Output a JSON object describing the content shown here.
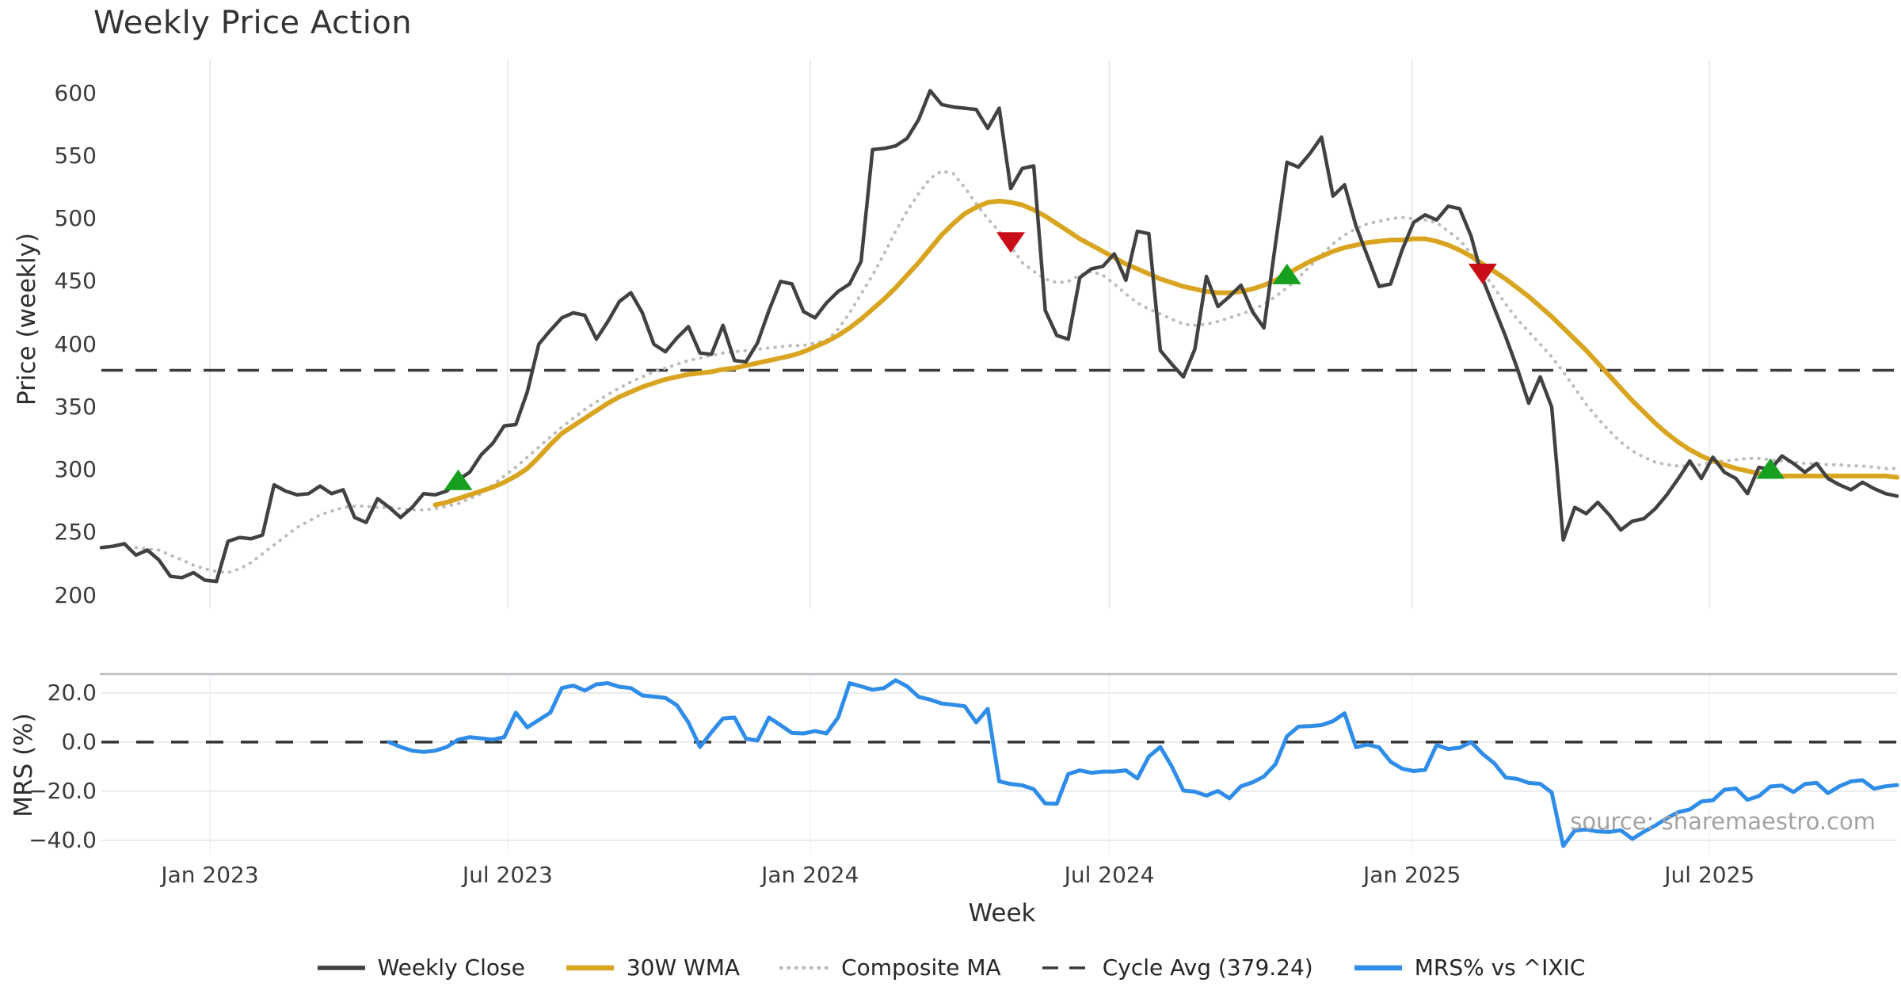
{
  "title": "Weekly Price Action",
  "watermark": "source: sharemaestro.com",
  "legend": [
    {
      "label": "Weekly Close",
      "swatch": "solid",
      "color": "#414141",
      "width": 5.5
    },
    {
      "label": "30W WMA",
      "swatch": "solid",
      "color": "#D9A521",
      "width": 6.5
    },
    {
      "label": "Composite MA",
      "swatch": "dotted",
      "color": "#B9B9B9",
      "width": 4.5
    },
    {
      "label": "Cycle Avg (379.24)",
      "swatch": "dashed",
      "color": "#3A3A3A",
      "width": 3.5
    },
    {
      "label": "MRS% vs ^IXIC",
      "swatch": "solid",
      "color": "#2F8DE8",
      "width": 6.5
    }
  ],
  "chart_data": {
    "type": "line",
    "title": "Weekly Price Action",
    "xlabel": "Week",
    "start_date": "2022-10-27",
    "step_days": 7,
    "points": 157,
    "x_ticks": [
      {
        "label": "Jan 2023",
        "week": 9.43
      },
      {
        "label": "Jul 2023",
        "week": 35.29
      },
      {
        "label": "Jan 2024",
        "week": 61.57
      },
      {
        "label": "Jul 2024",
        "week": 87.57
      },
      {
        "label": "Jan 2025",
        "week": 113.86
      },
      {
        "label": "Jul 2025",
        "week": 139.71
      }
    ],
    "panels": [
      {
        "id": "price",
        "ylabel": "Price (weekly)",
        "ylim": [
          189.6,
          626.9
        ],
        "grid_vertical": true,
        "yticks": [
          {
            "v": 600,
            "label": "600"
          },
          {
            "v": 550,
            "label": "550"
          },
          {
            "v": 500,
            "label": "500"
          },
          {
            "v": 450,
            "label": "450"
          },
          {
            "v": 400,
            "label": "400"
          },
          {
            "v": 350,
            "label": "350"
          },
          {
            "v": 300,
            "label": "300"
          },
          {
            "v": 250,
            "label": "250"
          },
          {
            "v": 200,
            "label": "200"
          }
        ],
        "hlines": [
          {
            "label": "Cycle Avg (379.24)",
            "value": 379.24,
            "color": "#3C3C3C",
            "dash": "27 16",
            "width": 3.5
          }
        ],
        "series": [
          {
            "name": "Composite MA",
            "color": "#BCBCBC",
            "style": "dotted",
            "width": 4,
            "start_week": 3,
            "values": [
              238,
              237,
              236,
              232,
              228,
              224,
              221,
              219,
              218,
              221,
              226,
              233,
              240,
              247,
              254,
              259,
              264,
              267,
              270,
              271,
              271,
              270,
              270,
              269,
              268,
              268,
              269,
              271,
              273,
              277,
              281,
              288,
              295,
              302,
              310,
              318,
              326,
              334,
              341,
              348,
              354,
              360,
              365,
              370,
              374,
              378,
              381,
              384,
              387,
              389,
              391,
              393,
              394,
              395,
              396,
              397,
              398,
              399,
              399,
              401,
              403,
              412,
              425,
              440,
              455,
              472,
              490,
              506,
              520,
              532,
              538,
              536,
              525,
              512,
              500,
              490,
              478,
              465,
              458,
              452,
              449,
              450,
              455,
              458,
              455,
              448,
              440,
              433,
              428,
              424,
              420,
              416,
              415,
              416,
              418,
              421,
              424,
              427,
              432,
              438,
              445,
              453,
              462,
              471,
              480,
              487,
              492,
              496,
              498,
              500,
              501,
              500,
              499,
              497,
              490,
              483,
              472,
              458,
              445,
              432,
              420,
              410,
              400,
              390,
              378,
              365,
              352,
              341,
              331,
              322,
              315,
              310,
              306,
              304,
              303,
              303,
              304,
              306,
              307,
              308,
              309,
              309,
              308,
              307,
              306,
              305,
              305,
              304,
              304,
              303,
              303,
              302,
              301,
              301
            ]
          },
          {
            "name": "30W WMA",
            "color": "#D9A521",
            "style": "solid",
            "width": 6,
            "start_week": 29,
            "values": [
              272,
              274,
              277,
              280,
              283,
              286,
              290,
              295,
              301,
              310,
              320,
              329,
              335,
              341,
              347,
              353,
              358,
              362,
              366,
              369,
              372,
              374,
              376,
              377,
              378,
              380,
              381,
              383,
              385,
              387,
              389,
              391,
              394,
              398,
              402,
              407,
              413,
              420,
              428,
              436,
              445,
              455,
              465,
              476,
              487,
              496,
              504,
              509,
              513,
              514,
              513,
              511,
              507,
              502,
              496,
              490,
              484,
              479,
              474,
              469,
              464,
              460,
              456,
              452,
              449,
              446,
              444,
              442,
              441,
              441,
              442,
              444,
              447,
              451,
              456,
              461,
              466,
              470,
              474,
              477,
              479,
              481,
              482,
              483,
              483,
              484,
              484,
              482,
              479,
              475,
              470,
              464,
              458,
              452,
              445,
              438,
              430,
              422,
              413,
              404,
              395,
              385,
              375,
              365,
              355,
              346,
              337,
              329,
              322,
              316,
              311,
              307,
              304,
              301,
              299,
              297,
              296,
              295,
              295,
              295,
              295,
              295,
              295,
              295,
              295,
              295,
              295,
              294
            ]
          },
          {
            "name": "Weekly Close",
            "color": "#414141",
            "style": "solid",
            "width": 4.5,
            "start_week": 0,
            "values": [
              238,
              239,
              241,
              232,
              236,
              228,
              215,
              214,
              218,
              212,
              211,
              243,
              246,
              245,
              248,
              288,
              283,
              280,
              281,
              287,
              281,
              284,
              262,
              258,
              277,
              270,
              262,
              270,
              281,
              280,
              283,
              292,
              298,
              312,
              321,
              335,
              336,
              362,
              400,
              411,
              421,
              425,
              423,
              404,
              418,
              434,
              441,
              425,
              400,
              394,
              405,
              414,
              393,
              392,
              415,
              387,
              386,
              401,
              427,
              450,
              448,
              426,
              421,
              433,
              442,
              448,
              466,
              555,
              556,
              558,
              564,
              579,
              602,
              591,
              589,
              588,
              587,
              572,
              588,
              524,
              540,
              542,
              427,
              407,
              404,
              453,
              460,
              462,
              472,
              451,
              490,
              488,
              395,
              384,
              374,
              396,
              454,
              430,
              438,
              447,
              426,
              413,
              480,
              545,
              541,
              552,
              565,
              518,
              527,
              494,
              470,
              446,
              448,
              475,
              497,
              503,
              499,
              510,
              508,
              486,
              452,
              429,
              406,
              381,
              353,
              374,
              350,
              244,
              270,
              265,
              274,
              264,
              252,
              259,
              261,
              269,
              280,
              293,
              307,
              293,
              310,
              298,
              293,
              281,
              302,
              300,
              311,
              305,
              298,
              305,
              293,
              288,
              284,
              290,
              285,
              281,
              279
            ]
          }
        ],
        "markers": [
          {
            "signal": "buy",
            "shape": "triangle-up",
            "color": "#17A01F",
            "week": 31,
            "value": 292
          },
          {
            "signal": "sell",
            "shape": "triangle-down",
            "color": "#C90D18",
            "week": 79,
            "value": 481
          },
          {
            "signal": "buy",
            "shape": "triangle-up",
            "color": "#17A01F",
            "week": 103,
            "value": 456
          },
          {
            "signal": "sell",
            "shape": "triangle-down",
            "color": "#C90D18",
            "week": 120,
            "value": 456
          },
          {
            "signal": "buy",
            "shape": "triangle-up",
            "color": "#17A01F",
            "week": 145,
            "value": 301
          }
        ]
      },
      {
        "id": "mrs",
        "ylabel": "MRS (%)",
        "ylim": [
          -45.5,
          27.7
        ],
        "grid_vertical": false,
        "top_border": true,
        "yticks": [
          {
            "v": 20,
            "label": "20.0"
          },
          {
            "v": 0,
            "label": "0.0"
          },
          {
            "v": -20,
            "label": "−20.0"
          },
          {
            "v": -40,
            "label": "−40.0"
          }
        ],
        "grid_horizontal": [
          20,
          0,
          -20,
          -40
        ],
        "hlines": [
          {
            "label": "zero line",
            "value": 0,
            "color": "#333333",
            "dash": "22 22",
            "width": 3.5
          }
        ],
        "series": [
          {
            "name": "MRS% vs ^IXIC",
            "color": "#2F8DE8",
            "style": "solid",
            "width": 5,
            "start_week": 25,
            "values": [
              0,
              -2,
              -3.5,
              -4,
              -3.5,
              -2,
              1,
              2,
              1.5,
              1,
              2,
              12,
              6,
              9,
              12,
              22,
              23,
              21,
              23.5,
              24,
              22.5,
              22,
              19,
              18.5,
              18,
              15,
              8,
              -2,
              4,
              9.6,
              10,
              1.4,
              0.6,
              10,
              6.9,
              3.7,
              3.5,
              4.5,
              3.5,
              10,
              24,
              22.7,
              21.3,
              22,
              25.2,
              22.7,
              18.4,
              17.3,
              15.7,
              15.2,
              14.6,
              8,
              13.5,
              -16,
              -17.1,
              -17.6,
              -19.2,
              -25,
              -25.1,
              -13,
              -11.5,
              -12.5,
              -12,
              -12,
              -11.5,
              -14.8,
              -5.9,
              -2,
              -10,
              -19.7,
              -20.2,
              -21.8,
              -19.9,
              -22.9,
              -18,
              -16.4,
              -14,
              -9,
              2.4,
              6.3,
              6.5,
              6.9,
              8.5,
              11.7,
              -2.1,
              -1,
              -2.2,
              -8,
              -10.8,
              -11.8,
              -11.3,
              -1.2,
              -2.8,
              -2.3,
              0,
              -4.8,
              -8.6,
              -14.4,
              -15,
              -16.6,
              -17,
              -20.5,
              -42.3,
              -36,
              -35.6,
              -36.4,
              -36.6,
              -35.9,
              -39.4,
              -36.5,
              -34,
              -31,
              -28.5,
              -27.4,
              -24.2,
              -23.7,
              -19.4,
              -18.9,
              -23.5,
              -22,
              -18.1,
              -17.7,
              -20.3,
              -17.1,
              -16.6,
              -20.8,
              -18,
              -16,
              -15.5,
              -19,
              -18,
              -17.5
            ]
          }
        ]
      }
    ]
  }
}
